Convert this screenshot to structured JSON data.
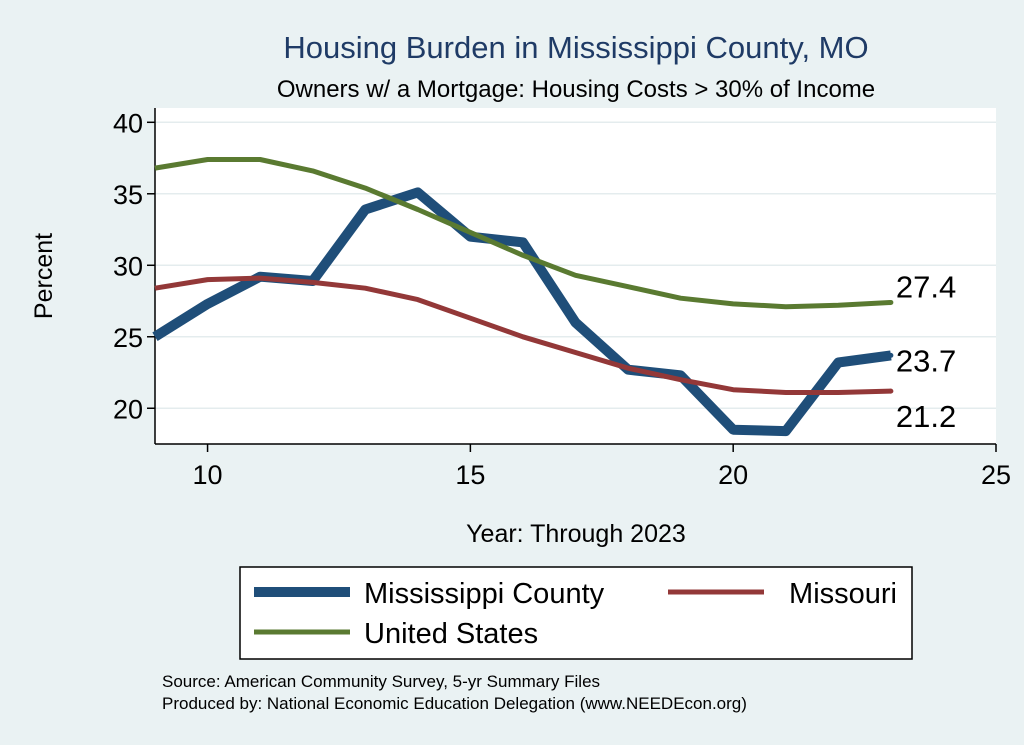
{
  "chart_data": {
    "type": "line",
    "title": "Housing Burden in Mississippi County, MO",
    "subtitle": "Owners w/ a Mortgage: Housing Costs > 30% of Income",
    "xlabel": "Year: Through 2023",
    "ylabel": "Percent",
    "xlim": [
      9,
      25
    ],
    "ylim": [
      17.5,
      41
    ],
    "xticks": [
      10,
      15,
      20,
      25
    ],
    "yticks": [
      20,
      25,
      30,
      35,
      40
    ],
    "grid": "horizontal",
    "x": [
      9,
      10,
      11,
      12,
      13,
      14,
      15,
      16,
      17,
      18,
      19,
      20,
      21,
      22,
      23
    ],
    "series": [
      {
        "name": "Mississippi County",
        "color": "#1f4e79",
        "end_label": "23.7",
        "values": [
          25.0,
          27.3,
          29.2,
          28.9,
          33.9,
          35.1,
          32.0,
          31.6,
          26.0,
          22.7,
          22.3,
          18.5,
          18.4,
          23.2,
          23.7
        ]
      },
      {
        "name": "Missouri",
        "color": "#933838",
        "end_label": "21.2",
        "values": [
          28.4,
          29.0,
          29.1,
          28.8,
          28.4,
          27.6,
          26.3,
          25.0,
          23.9,
          22.8,
          22.0,
          21.3,
          21.1,
          21.1,
          21.2
        ]
      },
      {
        "name": "United States",
        "color": "#5a7a31",
        "end_label": "27.4",
        "values": [
          36.8,
          37.4,
          37.4,
          36.6,
          35.4,
          33.9,
          32.3,
          30.7,
          29.3,
          28.5,
          27.7,
          27.3,
          27.1,
          27.2,
          27.4
        ]
      }
    ],
    "legend": {
      "position": "bottom",
      "entries": [
        "Mississippi County",
        "Missouri",
        "United States"
      ]
    }
  },
  "notes": {
    "source": "Source: American Community Survey, 5-yr Summary Files",
    "produced_by": "Produced by: National Economic Education Delegation (www.NEEDEcon.org)"
  }
}
